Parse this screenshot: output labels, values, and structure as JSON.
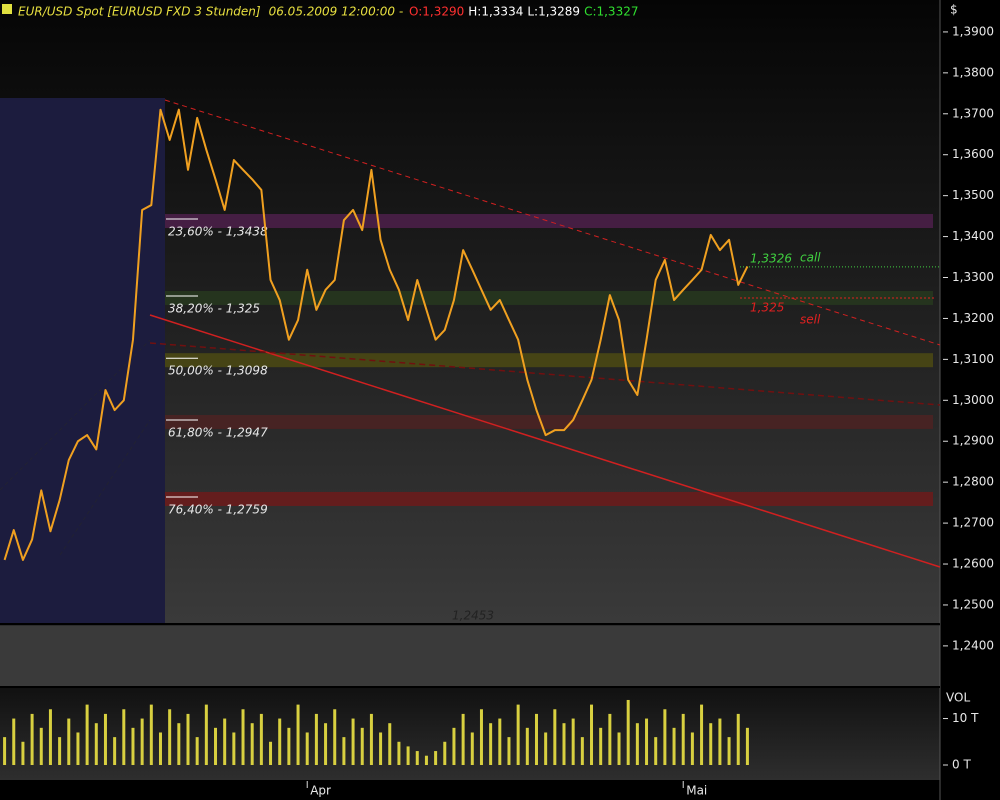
{
  "chart_data": [
    {
      "type": "line",
      "title": "EUR/USD Spot [EURUSD FXD  3 Stunden]",
      "timestamp": "06.05.2009 12:00:00",
      "currency": "$",
      "ohlc": [
        {
          "value": 1.329,
          "label": "O:1,3290",
          "color": "#ff3030"
        },
        {
          "value": 1.3334,
          "label": "H:1,3334",
          "color": "#ffffff"
        },
        {
          "value": 1.3289,
          "label": "L:1,3289",
          "color": "#ffffff"
        },
        {
          "value": 1.3327,
          "label": "C:1,3327",
          "color": "#30e030"
        }
      ],
      "values": [
        1.261,
        1.2683,
        1.261,
        1.266,
        1.278,
        1.268,
        1.2756,
        1.2854,
        1.29,
        1.2915,
        1.288,
        1.3025,
        1.2976,
        1.3,
        1.3148,
        1.3465,
        1.3477,
        1.371,
        1.3636,
        1.371,
        1.3563,
        1.369,
        1.3612,
        1.354,
        1.3465,
        1.3587,
        1.3563,
        1.354,
        1.3514,
        1.3294,
        1.3245,
        1.3148,
        1.3196,
        1.3319,
        1.3221,
        1.327,
        1.3294,
        1.344,
        1.3465,
        1.3416,
        1.3563,
        1.3392,
        1.3319,
        1.327,
        1.3196,
        1.3294,
        1.3221,
        1.3148,
        1.3172,
        1.3245,
        1.3367,
        1.3319,
        1.327,
        1.3221,
        1.3245,
        1.3196,
        1.3148,
        1.305,
        1.2976,
        1.2915,
        1.2927,
        1.2927,
        1.2952,
        1.3,
        1.305,
        1.3148,
        1.3257,
        1.3196,
        1.305,
        1.3013,
        1.3148,
        1.3294,
        1.3343,
        1.3245,
        1.327,
        1.3294,
        1.3319,
        1.3404,
        1.3367,
        1.3392,
        1.3282,
        1.3327
      ],
      "color": "#f0a020",
      "xlim": [
        -0.5,
        102
      ],
      "xticks": [
        {
          "value": 33,
          "label": "Apr"
        },
        {
          "value": 74,
          "label": "Mai"
        }
      ],
      "ylim": [
        1.2302,
        1.3978
      ],
      "yticks": [
        {
          "value": 1.39,
          "label": "1,3900"
        },
        {
          "value": 1.38,
          "label": "1,3800"
        },
        {
          "value": 1.37,
          "label": "1,3700"
        },
        {
          "value": 1.36,
          "label": "1,3600"
        },
        {
          "value": 1.35,
          "label": "1,3500"
        },
        {
          "value": 1.34,
          "label": "1,3400"
        },
        {
          "value": 1.33,
          "label": "1,3300"
        },
        {
          "value": 1.32,
          "label": "1,3200"
        },
        {
          "value": 1.31,
          "label": "1,3100"
        },
        {
          "value": 1.3,
          "label": "1,3000"
        },
        {
          "value": 1.29,
          "label": "1,2900"
        },
        {
          "value": 1.28,
          "label": "1,2800"
        },
        {
          "value": 1.27,
          "label": "1,2700"
        },
        {
          "value": 1.26,
          "label": "1,2600"
        },
        {
          "value": 1.25,
          "label": "1,2500"
        },
        {
          "value": 1.24,
          "label": "1,2400"
        }
      ],
      "fib_levels": [
        {
          "value": 1.3438,
          "label": "23,60% - 1,3438",
          "color": "#4a1f48"
        },
        {
          "value": 1.325,
          "label": "38,20% - 1,325",
          "color": "#26361e"
        },
        {
          "value": 1.3098,
          "label": "50,00% - 1,3098",
          "color": "#4a4814"
        },
        {
          "value": 1.2947,
          "label": "61,80% - 1,2947",
          "color": "#4a2222"
        },
        {
          "value": 1.2759,
          "label": "76,40% - 1,2759",
          "color": "#6a1c1c"
        }
      ],
      "annotations": [
        {
          "value": 1.3326,
          "label": "1,3326",
          "color": "#40d040"
        },
        {
          "value": 1.325,
          "label": "1,325",
          "color": "#e02020"
        },
        {
          "value": 1.2453,
          "label": "1,2453",
          "color": "#000000"
        }
      ],
      "signals": [
        {
          "text": "call",
          "color": "#40d040"
        },
        {
          "text": "sell",
          "color": "#e02020"
        }
      ]
    },
    {
      "type": "bar",
      "ylabel": "VOL",
      "values": [
        6,
        10,
        5,
        11,
        8,
        12,
        6,
        10,
        7,
        13,
        9,
        11,
        6,
        12,
        8,
        10,
        13,
        7,
        12,
        9,
        11,
        6,
        13,
        8,
        10,
        7,
        12,
        9,
        11,
        5,
        10,
        8,
        13,
        7,
        11,
        9,
        12,
        6,
        10,
        8,
        11,
        7,
        9,
        5,
        4,
        3,
        2,
        3,
        5,
        8,
        11,
        7,
        12,
        9,
        10,
        6,
        13,
        8,
        11,
        7,
        12,
        9,
        10,
        6,
        13,
        8,
        11,
        7,
        14,
        9,
        10,
        6,
        12,
        8,
        11,
        7,
        13,
        9,
        10,
        6,
        11,
        8
      ],
      "color": "#d8d040",
      "ylim": [
        0,
        15.5
      ],
      "yticks": [
        {
          "value": 0,
          "label": "0 T"
        },
        {
          "value": 10,
          "label": "10 T"
        }
      ]
    }
  ]
}
